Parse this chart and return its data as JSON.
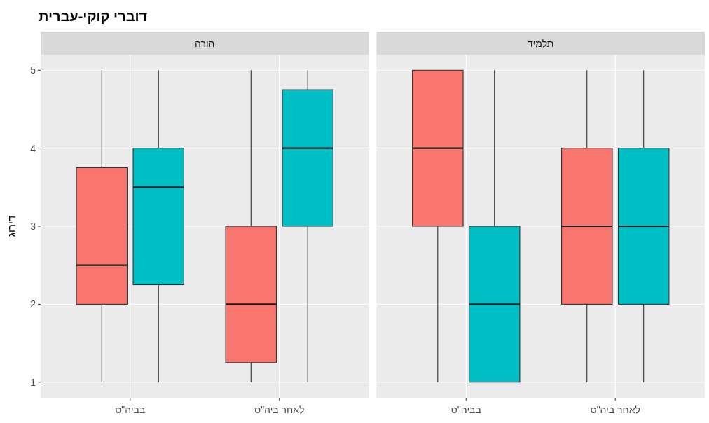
{
  "chart_data": [
    {
      "type": "box",
      "title": "דוברי קוקי-עברית",
      "subtitle": "הורה",
      "ylabel": "דירוג",
      "categories": [
        "בביה\"ס",
        "לאחר ביה\"ס"
      ],
      "ylim": [
        0.8,
        5.2
      ],
      "yticks": [
        1,
        2,
        3,
        4,
        5
      ],
      "grid": true,
      "series": [
        {
          "color": "#f8766d",
          "boxes": [
            {
              "low": 1,
              "q1": 2,
              "median": 2.5,
              "q3": 3.75,
              "high": 5
            },
            {
              "low": 1,
              "q1": 1.25,
              "median": 2,
              "q3": 3,
              "high": 5
            }
          ]
        },
        {
          "color": "#00bfc4",
          "boxes": [
            {
              "low": 1,
              "q1": 2.25,
              "median": 3.5,
              "q3": 4,
              "high": 5
            },
            {
              "low": 1,
              "q1": 3,
              "median": 4,
              "q3": 4.75,
              "high": 5
            }
          ]
        }
      ]
    },
    {
      "type": "box",
      "subtitle": "תלמיד",
      "categories": [
        "בביה\"ס",
        "לאחר ביה\"ס"
      ],
      "ylim": [
        0.8,
        5.2
      ],
      "yticks": [
        1,
        2,
        3,
        4,
        5
      ],
      "grid": true,
      "tick_labels": "x",
      "series": [
        {
          "color": "#f8766d",
          "boxes": [
            {
              "low": 1,
              "q1": 3,
              "median": 4,
              "q3": 5,
              "high": 5
            },
            {
              "low": 1,
              "q1": 2,
              "median": 3,
              "q3": 4,
              "high": 5
            }
          ]
        },
        {
          "color": "#00bfc4",
          "boxes": [
            {
              "low": 1,
              "q1": 1,
              "median": 2,
              "q3": 3,
              "high": 5
            },
            {
              "low": 1,
              "q1": 2,
              "median": 3,
              "q3": 4,
              "high": 5
            }
          ]
        }
      ]
    }
  ]
}
